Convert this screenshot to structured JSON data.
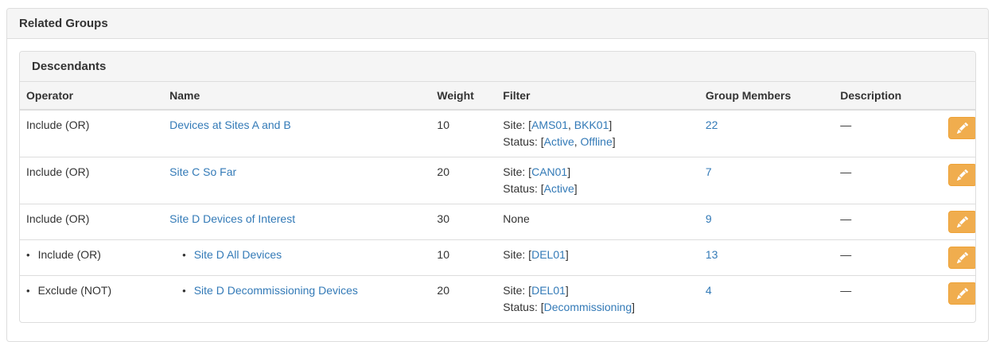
{
  "panel": {
    "title": "Related Groups"
  },
  "descendants": {
    "title": "Descendants",
    "columns": [
      {
        "key": "operator",
        "label": "Operator"
      },
      {
        "key": "name",
        "label": "Name"
      },
      {
        "key": "weight",
        "label": "Weight"
      },
      {
        "key": "filter",
        "label": "Filter"
      },
      {
        "key": "group-members",
        "label": "Group Members"
      },
      {
        "key": "description",
        "label": "Description"
      },
      {
        "key": "actions",
        "label": ""
      }
    ],
    "filter_format": {
      "open": ": [",
      "separator": ", ",
      "close": "]"
    },
    "rows": [
      {
        "child": false,
        "operator": "Include (OR)",
        "name": "Devices at Sites A and B",
        "weight": "10",
        "filter": [
          {
            "label": "Site",
            "values": [
              "AMS01",
              "BKK01"
            ]
          },
          {
            "label": "Status",
            "values": [
              "Active",
              "Offline"
            ]
          }
        ],
        "members": "22",
        "description": "—"
      },
      {
        "child": false,
        "operator": "Include (OR)",
        "name": "Site C So Far",
        "weight": "20",
        "filter": [
          {
            "label": "Site",
            "values": [
              "CAN01"
            ]
          },
          {
            "label": "Status",
            "values": [
              "Active"
            ]
          }
        ],
        "members": "7",
        "description": "—"
      },
      {
        "child": false,
        "operator": "Include (OR)",
        "name": "Site D Devices of Interest",
        "weight": "30",
        "filter": "None",
        "members": "9",
        "description": "—"
      },
      {
        "child": true,
        "operator": "Include (OR)",
        "name": "Site D All Devices",
        "weight": "10",
        "filter": [
          {
            "label": "Site",
            "values": [
              "DEL01"
            ]
          }
        ],
        "members": "13",
        "description": "—"
      },
      {
        "child": true,
        "operator": "Exclude (NOT)",
        "name": "Site D Decommissioning Devices",
        "weight": "20",
        "filter": [
          {
            "label": "Site",
            "values": [
              "DEL01"
            ]
          },
          {
            "label": "Status",
            "values": [
              "Decommissioning"
            ]
          }
        ],
        "members": "4",
        "description": "—"
      }
    ],
    "bullet_glyph": "•"
  },
  "icons": {
    "edit": "pencil-icon"
  },
  "colors": {
    "link": "#337ab7",
    "heading_bg": "#f5f5f5",
    "border": "#dddddd",
    "edit_button_bg": "#f0ad4e",
    "edit_button_border": "#eea236",
    "text": "#333333"
  }
}
